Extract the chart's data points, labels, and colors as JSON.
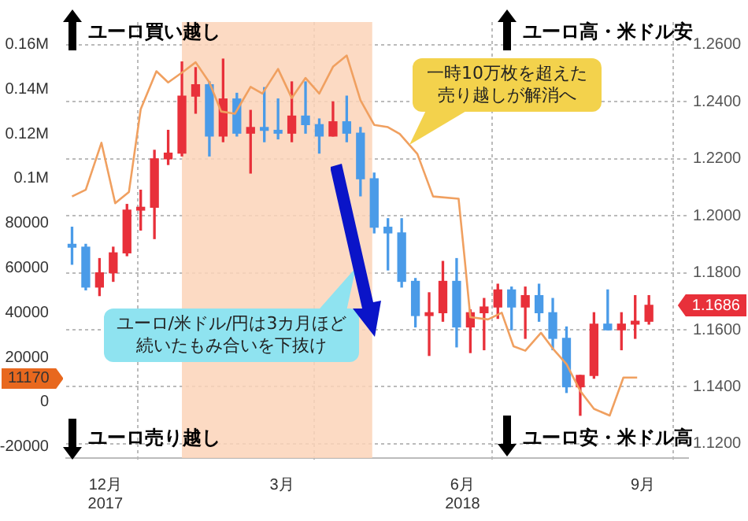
{
  "chart_data": {
    "type": "candlestick",
    "series": [
      {
        "axis": "y2",
        "x": [
          "2017-11-29",
          "2017-12-06",
          "2017-12-13",
          "2017-12-20",
          "2017-12-27",
          "2018-01-03",
          "2018-01-10",
          "2018-01-17",
          "2018-01-24",
          "2018-01-31",
          "2018-02-07",
          "2018-02-14",
          "2018-02-21",
          "2018-02-28",
          "2018-03-07",
          "2018-03-14",
          "2018-03-21",
          "2018-03-28",
          "2018-04-04",
          "2018-04-11",
          "2018-04-18",
          "2018-04-25",
          "2018-05-02",
          "2018-05-09",
          "2018-05-16",
          "2018-05-23",
          "2018-05-30",
          "2018-06-06",
          "2018-06-13",
          "2018-06-20",
          "2018-06-27",
          "2018-07-04",
          "2018-07-11",
          "2018-07-18",
          "2018-07-25",
          "2018-08-01",
          "2018-08-08",
          "2018-08-15",
          "2018-08-22",
          "2018-08-29",
          "2018-09-05",
          "2018-09-12",
          "2018-09-19"
        ],
        "ohlc": [
          [
            1.19,
            1.196,
            1.183,
            1.189
          ],
          [
            1.189,
            1.19,
            1.174,
            1.175
          ],
          [
            1.175,
            1.185,
            1.172,
            1.18
          ],
          [
            1.18,
            1.189,
            1.177,
            1.187
          ],
          [
            1.187,
            1.204,
            1.186,
            1.202
          ],
          [
            1.202,
            1.209,
            1.195,
            1.203
          ],
          [
            1.203,
            1.223,
            1.192,
            1.22
          ],
          [
            1.22,
            1.23,
            1.218,
            1.222
          ],
          [
            1.222,
            1.254,
            1.221,
            1.242
          ],
          [
            1.242,
            1.252,
            1.236,
            1.246
          ],
          [
            1.246,
            1.247,
            1.221,
            1.228
          ],
          [
            1.228,
            1.255,
            1.226,
            1.241
          ],
          [
            1.241,
            1.243,
            1.228,
            1.229
          ],
          [
            1.229,
            1.237,
            1.215,
            1.231
          ],
          [
            1.231,
            1.245,
            1.226,
            1.23
          ],
          [
            1.23,
            1.241,
            1.227,
            1.229
          ],
          [
            1.229,
            1.247,
            1.226,
            1.235
          ],
          [
            1.235,
            1.247,
            1.229,
            1.232
          ],
          [
            1.232,
            1.234,
            1.222,
            1.228
          ],
          [
            1.228,
            1.24,
            1.228,
            1.233
          ],
          [
            1.233,
            1.242,
            1.226,
            1.229
          ],
          [
            1.229,
            1.231,
            1.207,
            1.213
          ],
          [
            1.213,
            1.215,
            1.194,
            1.196
          ],
          [
            1.196,
            1.199,
            1.181,
            1.194
          ],
          [
            1.194,
            1.199,
            1.175,
            1.177
          ],
          [
            1.177,
            1.178,
            1.161,
            1.165
          ],
          [
            1.165,
            1.173,
            1.151,
            1.166
          ],
          [
            1.166,
            1.184,
            1.163,
            1.177
          ],
          [
            1.177,
            1.185,
            1.154,
            1.161
          ],
          [
            1.161,
            1.167,
            1.152,
            1.166
          ],
          [
            1.166,
            1.171,
            1.153,
            1.168
          ],
          [
            1.168,
            1.176,
            1.164,
            1.174
          ],
          [
            1.174,
            1.175,
            1.16,
            1.168
          ],
          [
            1.168,
            1.175,
            1.157,
            1.172
          ],
          [
            1.172,
            1.176,
            1.163,
            1.166
          ],
          [
            1.166,
            1.171,
            1.153,
            1.157
          ],
          [
            1.157,
            1.161,
            1.138,
            1.14
          ],
          [
            1.14,
            1.144,
            1.13,
            1.144
          ],
          [
            1.144,
            1.166,
            1.143,
            1.162
          ],
          [
            1.162,
            1.174,
            1.16,
            1.16
          ],
          [
            1.16,
            1.166,
            1.153,
            1.162
          ],
          [
            1.162,
            1.172,
            1.157,
            1.163
          ],
          [
            1.163,
            1.172,
            1.162,
            1.1686
          ]
        ],
        "colors": [
          "#4a9be8",
          "#4a9be8",
          "#e8303a",
          "#e8303a",
          "#e8303a",
          "#e8303a",
          "#e8303a",
          "#e8303a",
          "#e8303a",
          "#e8303a",
          "#4a9be8",
          "#e8303a",
          "#4a9be8",
          "#e8303a",
          "#4a9be8",
          "#4a9be8",
          "#e8303a",
          "#4a9be8",
          "#4a9be8",
          "#e8303a",
          "#4a9be8",
          "#4a9be8",
          "#4a9be8",
          "#4a9be8",
          "#4a9be8",
          "#4a9be8",
          "#e8303a",
          "#e8303a",
          "#4a9be8",
          "#e8303a",
          "#e8303a",
          "#e8303a",
          "#4a9be8",
          "#e8303a",
          "#4a9be8",
          "#4a9be8",
          "#4a9be8",
          "#e8303a",
          "#e8303a",
          "#4a9be8",
          "#e8303a",
          "#e8303a",
          "#e8303a"
        ],
        "value_labels": [
          null,
          null,
          null,
          null,
          null,
          null,
          null,
          null,
          null,
          null,
          null,
          null,
          null,
          null,
          null,
          null,
          null,
          null,
          null,
          null,
          null,
          null,
          null,
          null,
          null,
          null,
          null,
          null,
          null,
          null,
          null,
          null,
          null,
          null,
          null,
          null,
          null,
          null,
          null,
          null,
          null,
          null,
          "1.1686"
        ]
      },
      {
        "type": "line",
        "color": "#f0a060",
        "x": [
          "2017-11-29",
          "2017-12-06",
          "2017-12-14",
          "2017-12-21",
          "2017-12-28",
          "2018-01-03",
          "2018-01-11",
          "2018-01-17",
          "2018-01-25",
          "2018-01-31",
          "2018-02-07",
          "2018-02-13",
          "2018-02-20",
          "2018-02-28",
          "2018-03-06",
          "2018-03-14",
          "2018-03-21",
          "2018-03-28",
          "2018-04-04",
          "2018-04-11",
          "2018-04-18",
          "2018-04-25",
          "2018-05-02",
          "2018-05-09",
          "2018-05-15",
          "2018-05-24",
          "2018-06-01",
          "2018-06-14",
          "2018-06-17",
          "2018-06-20",
          "2018-06-29",
          "2018-07-06",
          "2018-07-12",
          "2018-07-18",
          "2018-07-26",
          "2018-08-01",
          "2018-08-08",
          "2018-08-15",
          "2018-08-22",
          "2018-08-30",
          "2018-09-06",
          "2018-09-13"
        ],
        "values": [
          92000,
          95000,
          116000,
          89000,
          94000,
          131000,
          148000,
          143000,
          148000,
          152000,
          143000,
          130000,
          129000,
          141000,
          138000,
          149000,
          136000,
          145000,
          138000,
          150000,
          155000,
          135000,
          124000,
          123000,
          120000,
          111000,
          92000,
          91000,
          65000,
          38000,
          37000,
          40000,
          25000,
          23000,
          31000,
          24000,
          17000,
          5000,
          -3000,
          -6000,
          11000,
          11000
        ]
      }
    ],
    "xlim": [
      "2017-11-26",
      "2018-10-09"
    ],
    "xticks": [
      {
        "value": "2017-12-16",
        "label": "12月\n2017"
      },
      {
        "value": "2018-01-01",
        "label": null
      },
      {
        "value": "2018-03-16",
        "label": "3月"
      },
      {
        "value": "2018-04-01",
        "label": null
      },
      {
        "value": "2018-06-16",
        "label": "6月\n2018"
      },
      {
        "value": "2018-07-01",
        "label": null
      },
      {
        "value": "2018-09-16",
        "label": "9月"
      },
      {
        "value": "2018-10-01",
        "label": null
      }
    ],
    "ylim": [
      -25000,
      170000
    ],
    "yticks": [
      -20000,
      0,
      20000,
      40000,
      60000,
      80000,
      {
        "value": 100000,
        "label": "0.1M"
      },
      {
        "value": 120000,
        "label": "0.12M"
      },
      {
        "value": 140000,
        "label": "0.14M"
      },
      {
        "value": 160000,
        "label": "0.16M"
      }
    ],
    "y2lim": [
      1.115,
      1.268
    ],
    "y2ticks": [
      {
        "value": 1.12,
        "label": "1.1200"
      },
      {
        "value": 1.14,
        "label": "1.1400"
      },
      {
        "value": 1.16,
        "label": "1.1600"
      },
      {
        "value": 1.18,
        "label": "1.1800"
      },
      {
        "value": 1.2,
        "label": "1.2000"
      },
      {
        "value": 1.22,
        "label": "1.2200"
      },
      {
        "value": 1.24,
        "label": "1.2400"
      },
      {
        "value": 1.26,
        "label": "1.2600"
      }
    ],
    "bands": [
      {
        "axis": "x",
        "from": "2018-01-24",
        "to": "2018-05-01",
        "color": "#fbd3b8"
      }
    ],
    "grid": true,
    "marker": "none",
    "annotations": [
      "ユーロ買い越し",
      "ユーロ売り越し",
      "ユーロ高・米ドル安",
      "ユーロ安・米ドル高",
      "一時10万枚を超えた売り越しが解消へ",
      "ユーロ/米ドル/円は3カ月ほど続いたもみ合いを下抜け",
      "11170"
    ]
  }
}
